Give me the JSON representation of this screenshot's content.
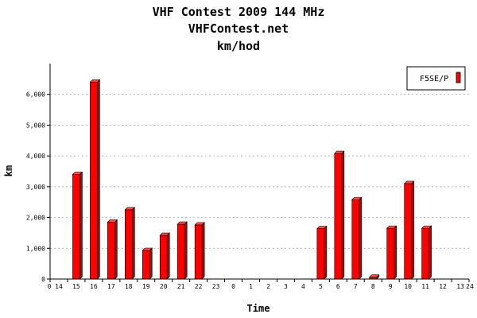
{
  "chart_data": {
    "type": "bar",
    "title": "VHF Contest 2009 144 MHz",
    "subtitle": "VHFContest.net",
    "subtitle2": "km/hod",
    "xlabel": "Time",
    "ylabel": "km",
    "ylim": [
      0,
      7000
    ],
    "yticks": [
      0,
      1000,
      2000,
      3000,
      4000,
      5000,
      6000
    ],
    "ytick_labels": [
      "0",
      "1,000",
      "2,000",
      "3,000",
      "4,000",
      "5,000",
      "6,000"
    ],
    "x_edge_labels": [
      "0",
      "24"
    ],
    "categories": [
      "14",
      "15",
      "16",
      "17",
      "18",
      "19",
      "20",
      "21",
      "22",
      "23",
      "0",
      "1",
      "2",
      "3",
      "4",
      "5",
      "6",
      "7",
      "8",
      "9",
      "10",
      "11",
      "12",
      "13"
    ],
    "series": [
      {
        "name": "F5SE/P",
        "color": "#ff0000",
        "values": [
          0,
          3400,
          6400,
          1850,
          2250,
          930,
          1420,
          1780,
          1760,
          0,
          0,
          0,
          0,
          0,
          0,
          1640,
          4080,
          2580,
          60,
          1650,
          3100,
          1650,
          0,
          0
        ]
      }
    ],
    "grid": true,
    "legend_position": "top-right"
  }
}
